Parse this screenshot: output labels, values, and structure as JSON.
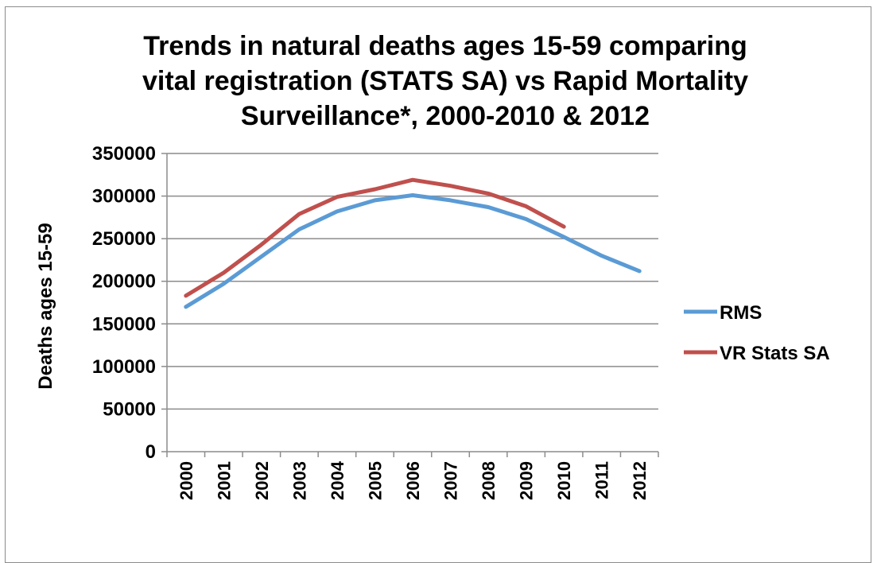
{
  "chart_data": {
    "type": "line",
    "title_lines": [
      "Trends in natural deaths ages 15-59 comparing",
      "vital registration (STATS SA) vs Rapid Mortality",
      "Surveillance*, 2000-2010 & 2012"
    ],
    "xlabel": "",
    "ylabel": "Deaths ages 15-59",
    "ylim": [
      0,
      350000
    ],
    "yticks": [
      "0",
      "50000",
      "100000",
      "150000",
      "200000",
      "250000",
      "300000",
      "350000"
    ],
    "categories": [
      "2000",
      "2001",
      "2002",
      "2003",
      "2004",
      "2005",
      "2006",
      "2007",
      "2008",
      "2009",
      "2010",
      "2011",
      "2012"
    ],
    "grid": true,
    "legend_position": "right",
    "series": [
      {
        "name": "RMS",
        "color": "#5b9bd5",
        "values": [
          170000,
          197000,
          229000,
          261000,
          282000,
          295000,
          301000,
          295000,
          287000,
          273000,
          252000,
          230000,
          212000
        ]
      },
      {
        "name": "VR Stats SA",
        "color": "#c0504d",
        "values": [
          183000,
          210000,
          243000,
          279000,
          299000,
          308000,
          319000,
          312000,
          303000,
          288000,
          264000,
          null,
          null
        ]
      }
    ]
  }
}
